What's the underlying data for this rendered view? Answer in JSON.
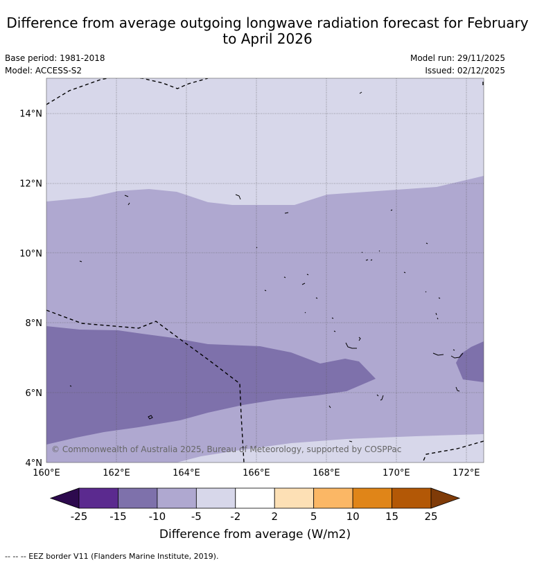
{
  "title": "Difference from average outgoing longwave radiation forecast for February to April 2026",
  "meta": {
    "base_period": "Base period: 1981-2018",
    "model": "Model: ACCESS-S2",
    "model_run": "Model run: 29/11/2025",
    "issued": "Issued: 02/12/2025"
  },
  "axes": {
    "lat_labels": [
      "4°N",
      "6°N",
      "8°N",
      "10°N",
      "12°N",
      "14°N"
    ],
    "lat_values": [
      4,
      6,
      8,
      10,
      12,
      14
    ],
    "lon_labels": [
      "160°E",
      "162°E",
      "164°E",
      "166°E",
      "168°E",
      "170°E",
      "172°E"
    ],
    "lon_values": [
      160,
      162,
      164,
      166,
      168,
      170,
      172
    ],
    "lon_range": [
      160,
      172.5
    ],
    "lat_range": [
      4,
      15
    ]
  },
  "legend": {
    "ticks": [
      "-25",
      "-15",
      "-10",
      "-5",
      "-2",
      "2",
      "5",
      "10",
      "15",
      "25"
    ],
    "colors": [
      "#2d0a4e",
      "#5b2a8f",
      "#7e71ab",
      "#afa8d0",
      "#d7d7ea",
      "#ffffff",
      "#fde0b5",
      "#fbb765",
      "#e08518",
      "#b35806",
      "#7f3b08"
    ],
    "title": "Difference from average (W/m2)"
  },
  "copyright": "© Commonwealth of Australia 2025, Bureau of Meteorology, supported by COSPPac",
  "footer": "--  --  -- EEZ border V11 (Flanders Marine Institute, 2019).",
  "field_colors": {
    "band_lightest": "#d7d7ea",
    "band_light": "#afa8d0",
    "band_mid": "#7e71ab"
  }
}
